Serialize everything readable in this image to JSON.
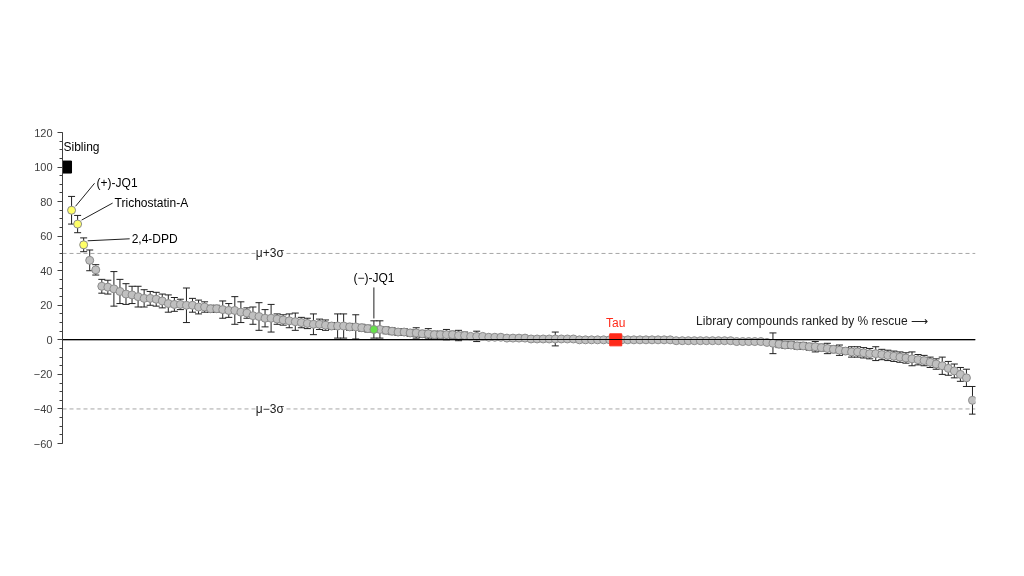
{
  "chart_data": {
    "type": "scatter",
    "marker": "circle",
    "legend": false,
    "grid": false,
    "tick_labels": "y",
    "ylim": [
      -60,
      120
    ],
    "yticks": [
      -60,
      -40,
      -20,
      0,
      20,
      40,
      60,
      80,
      100,
      120
    ],
    "categories": [
      null,
      null,
      null,
      null,
      null,
      null,
      null,
      null,
      null,
      null,
      null,
      null,
      null,
      null,
      null,
      null,
      null,
      null,
      null,
      null,
      null,
      null,
      null,
      null,
      null,
      null,
      null,
      null,
      null,
      null,
      null,
      null,
      null,
      null,
      null,
      null,
      null,
      null,
      null,
      null,
      null,
      null,
      null,
      null,
      null,
      null,
      null,
      null,
      null,
      null,
      null,
      null,
      null,
      null,
      null,
      null,
      null,
      null,
      null,
      null,
      null,
      null,
      null,
      null,
      null,
      null,
      null,
      null,
      null,
      null,
      null,
      null,
      null,
      null,
      null,
      null,
      null,
      null,
      null,
      null,
      null,
      null,
      null,
      null,
      null,
      null,
      null,
      null,
      null,
      null,
      null,
      null,
      null,
      null,
      null,
      null,
      null,
      null,
      null,
      null,
      null,
      null,
      null,
      null,
      null,
      null,
      null,
      null,
      null,
      null,
      null,
      null,
      null,
      null,
      null,
      null,
      null,
      null,
      null,
      null,
      null,
      null,
      null,
      null,
      null,
      null,
      null,
      null,
      null,
      null,
      null,
      null,
      null,
      null,
      null,
      null,
      null,
      null,
      null,
      null,
      null,
      null,
      null,
      null,
      null,
      null,
      null,
      null,
      null,
      null,
      null
    ],
    "series": [
      {
        "color": "#c0c0c0",
        "values": [
          null,
          null,
          null,
          null,
          46,
          40.5,
          31,
          30.5,
          29.5,
          28,
          26.5,
          26,
          25,
          24,
          24,
          23.5,
          22.5,
          21,
          20.5,
          20.5,
          20,
          20,
          19,
          19,
          18,
          18,
          17.5,
          17,
          17,
          16,
          15.5,
          14,
          13.5,
          12.5,
          12.5,
          12,
          11.5,
          11,
          10.5,
          10,
          9.5,
          9,
          9,
          8.5,
          8,
          8,
          8,
          7.5,
          7.5,
          7,
          6.5,
          null,
          6,
          5.5,
          5,
          4.5,
          4.5,
          4,
          4,
          3.5,
          3.5,
          3,
          3,
          3,
          3,
          2.5,
          2.5,
          2,
          2,
          2,
          1.5,
          1.5,
          1.5,
          1,
          1,
          1,
          1,
          0.5,
          0.5,
          0.5,
          0.5,
          0.5,
          0.5,
          0.5,
          0.5,
          0,
          0,
          0,
          0,
          0,
          0,
          null,
          0,
          0,
          0,
          0,
          0,
          0,
          0,
          0,
          0,
          -0.5,
          -0.5,
          -0.5,
          -0.5,
          -0.5,
          -0.5,
          -0.5,
          -0.5,
          -0.5,
          -0.5,
          -1,
          -1,
          -1,
          -1,
          -1,
          -1.5,
          -2,
          -2.5,
          -3,
          -3,
          -3.5,
          -3.5,
          -4,
          -4,
          -4.5,
          -5,
          -5.5,
          -6,
          -6.5,
          -7,
          -7,
          -7.5,
          -8,
          -8,
          -8.5,
          -9,
          -9.5,
          -10,
          -10.5,
          -11,
          -11.5,
          -12,
          -13,
          -14,
          -15,
          -16.5,
          -18,
          -20,
          -22,
          -35
        ],
        "errors": [
          null,
          null,
          null,
          null,
          6,
          3,
          4,
          4,
          10,
          7,
          6,
          5,
          6,
          5,
          4,
          4,
          4,
          5,
          4,
          3,
          10,
          4,
          4,
          3,
          2,
          2,
          5,
          4,
          8,
          6,
          3,
          5,
          8,
          5,
          8,
          3,
          3,
          4,
          5,
          3,
          3,
          6,
          3,
          3,
          2,
          7,
          7,
          2,
          7,
          2,
          2,
          null,
          5,
          2,
          2,
          2,
          2,
          2,
          3,
          2,
          3,
          2,
          2,
          3,
          2,
          3,
          2,
          1,
          3,
          1,
          1,
          1,
          1,
          1,
          1,
          1,
          1,
          1,
          1,
          1,
          1,
          4,
          1,
          1,
          1,
          1,
          1,
          1,
          1,
          1,
          1,
          null,
          1,
          1,
          1,
          1,
          1,
          1,
          1,
          1,
          1,
          1,
          1,
          1,
          1,
          1,
          1,
          1,
          1,
          1,
          1,
          1,
          1,
          1,
          1,
          1,
          1,
          6,
          2,
          2,
          2,
          2,
          2,
          2,
          3,
          2,
          3,
          2,
          3,
          2,
          3,
          3,
          3,
          3,
          4,
          3,
          3,
          3,
          3,
          3,
          4,
          3,
          3,
          3,
          3,
          5,
          4,
          4,
          4,
          5,
          8
        ]
      },
      {
        "name": "Sibling",
        "color": "#000000",
        "marker": "square",
        "values": [
          100,
          null,
          null,
          null,
          null,
          null,
          null,
          null,
          null,
          null,
          null,
          null,
          null,
          null,
          null,
          null,
          null,
          null,
          null,
          null,
          null,
          null,
          null,
          null,
          null,
          null,
          null,
          null,
          null,
          null,
          null,
          null,
          null,
          null,
          null,
          null,
          null,
          null,
          null,
          null,
          null,
          null,
          null,
          null,
          null,
          null,
          null,
          null,
          null,
          null,
          null,
          null,
          null,
          null,
          null,
          null,
          null,
          null,
          null,
          null,
          null,
          null,
          null,
          null,
          null,
          null,
          null,
          null,
          null,
          null,
          null,
          null,
          null,
          null,
          null,
          null,
          null,
          null,
          null,
          null,
          null,
          null,
          null,
          null,
          null,
          null,
          null,
          null,
          null,
          null,
          null,
          null,
          null,
          null,
          null,
          null,
          null,
          null,
          null,
          null,
          null,
          null,
          null,
          null,
          null,
          null,
          null,
          null,
          null,
          null,
          null,
          null,
          null,
          null,
          null,
          null,
          null,
          null,
          null,
          null,
          null,
          null,
          null,
          null,
          null,
          null,
          null,
          null,
          null,
          null,
          null,
          null,
          null,
          null,
          null,
          null,
          null,
          null,
          null,
          null,
          null,
          null,
          null,
          null,
          null,
          null,
          null,
          null,
          null,
          null,
          null
        ]
      },
      {
        "name": "(+)-JQ1",
        "color": "#ffff66",
        "values": [
          null,
          75,
          null,
          null,
          null,
          null,
          null,
          null,
          null,
          null,
          null,
          null,
          null,
          null,
          null,
          null,
          null,
          null,
          null,
          null,
          null,
          null,
          null,
          null,
          null,
          null,
          null,
          null,
          null,
          null,
          null,
          null,
          null,
          null,
          null,
          null,
          null,
          null,
          null,
          null,
          null,
          null,
          null,
          null,
          null,
          null,
          null,
          null,
          null,
          null,
          null,
          null,
          null,
          null,
          null,
          null,
          null,
          null,
          null,
          null,
          null,
          null,
          null,
          null,
          null,
          null,
          null,
          null,
          null,
          null,
          null,
          null,
          null,
          null,
          null,
          null,
          null,
          null,
          null,
          null,
          null,
          null,
          null,
          null,
          null,
          null,
          null,
          null,
          null,
          null,
          null,
          null,
          null,
          null,
          null,
          null,
          null,
          null,
          null,
          null,
          null,
          null,
          null,
          null,
          null,
          null,
          null,
          null,
          null,
          null,
          null,
          null,
          null,
          null,
          null,
          null,
          null,
          null,
          null,
          null,
          null,
          null,
          null,
          null,
          null,
          null,
          null,
          null,
          null,
          null,
          null,
          null,
          null,
          null,
          null,
          null,
          null,
          null,
          null,
          null,
          null,
          null,
          null,
          null,
          null,
          null,
          null,
          null,
          null,
          null,
          null
        ],
        "errors": [
          null,
          8,
          null,
          null,
          null,
          null,
          null,
          null,
          null,
          null,
          null,
          null,
          null,
          null,
          null,
          null,
          null,
          null,
          null,
          null,
          null,
          null,
          null,
          null,
          null,
          null,
          null,
          null,
          null,
          null,
          null,
          null,
          null,
          null,
          null,
          null,
          null,
          null,
          null,
          null,
          null,
          null,
          null,
          null,
          null,
          null,
          null,
          null,
          null,
          null,
          null,
          null,
          null,
          null,
          null,
          null,
          null,
          null,
          null,
          null,
          null,
          null,
          null,
          null,
          null,
          null,
          null,
          null,
          null,
          null,
          null,
          null,
          null,
          null,
          null,
          null,
          null,
          null,
          null,
          null,
          null,
          null,
          null,
          null,
          null,
          null,
          null,
          null,
          null,
          null,
          null,
          null,
          null,
          null,
          null,
          null,
          null,
          null,
          null,
          null,
          null,
          null,
          null,
          null,
          null,
          null,
          null,
          null,
          null,
          null,
          null,
          null,
          null,
          null,
          null,
          null,
          null,
          null,
          null,
          null,
          null,
          null,
          null,
          null,
          null,
          null,
          null,
          null,
          null,
          null,
          null,
          null,
          null,
          null,
          null,
          null,
          null,
          null,
          null,
          null,
          null,
          null,
          null,
          null,
          null,
          null,
          null,
          null,
          null,
          null,
          null
        ]
      },
      {
        "name": "Trichostatin-A",
        "color": "#ffff66",
        "values": [
          null,
          null,
          67,
          null,
          null,
          null,
          null,
          null,
          null,
          null,
          null,
          null,
          null,
          null,
          null,
          null,
          null,
          null,
          null,
          null,
          null,
          null,
          null,
          null,
          null,
          null,
          null,
          null,
          null,
          null,
          null,
          null,
          null,
          null,
          null,
          null,
          null,
          null,
          null,
          null,
          null,
          null,
          null,
          null,
          null,
          null,
          null,
          null,
          null,
          null,
          null,
          null,
          null,
          null,
          null,
          null,
          null,
          null,
          null,
          null,
          null,
          null,
          null,
          null,
          null,
          null,
          null,
          null,
          null,
          null,
          null,
          null,
          null,
          null,
          null,
          null,
          null,
          null,
          null,
          null,
          null,
          null,
          null,
          null,
          null,
          null,
          null,
          null,
          null,
          null,
          null,
          null,
          null,
          null,
          null,
          null,
          null,
          null,
          null,
          null,
          null,
          null,
          null,
          null,
          null,
          null,
          null,
          null,
          null,
          null,
          null,
          null,
          null,
          null,
          null,
          null,
          null,
          null,
          null,
          null,
          null,
          null,
          null,
          null,
          null,
          null,
          null,
          null,
          null,
          null,
          null,
          null,
          null,
          null,
          null,
          null,
          null,
          null,
          null,
          null,
          null,
          null,
          null,
          null,
          null,
          null,
          null,
          null,
          null,
          null,
          null
        ],
        "errors": [
          null,
          null,
          5,
          null,
          null,
          null,
          null,
          null,
          null,
          null,
          null,
          null,
          null,
          null,
          null,
          null,
          null,
          null,
          null,
          null,
          null,
          null,
          null,
          null,
          null,
          null,
          null,
          null,
          null,
          null,
          null,
          null,
          null,
          null,
          null,
          null,
          null,
          null,
          null,
          null,
          null,
          null,
          null,
          null,
          null,
          null,
          null,
          null,
          null,
          null,
          null,
          null,
          null,
          null,
          null,
          null,
          null,
          null,
          null,
          null,
          null,
          null,
          null,
          null,
          null,
          null,
          null,
          null,
          null,
          null,
          null,
          null,
          null,
          null,
          null,
          null,
          null,
          null,
          null,
          null,
          null,
          null,
          null,
          null,
          null,
          null,
          null,
          null,
          null,
          null,
          null,
          null,
          null,
          null,
          null,
          null,
          null,
          null,
          null,
          null,
          null,
          null,
          null,
          null,
          null,
          null,
          null,
          null,
          null,
          null,
          null,
          null,
          null,
          null,
          null,
          null,
          null,
          null,
          null,
          null,
          null,
          null,
          null,
          null,
          null,
          null,
          null,
          null,
          null,
          null,
          null,
          null,
          null,
          null,
          null,
          null,
          null,
          null,
          null,
          null,
          null,
          null,
          null,
          null,
          null,
          null,
          null,
          null,
          null,
          null,
          null
        ]
      },
      {
        "name": "2,4-DPD",
        "color": "#ffff66",
        "values": [
          null,
          null,
          null,
          55,
          null,
          null,
          null,
          null,
          null,
          null,
          null,
          null,
          null,
          null,
          null,
          null,
          null,
          null,
          null,
          null,
          null,
          null,
          null,
          null,
          null,
          null,
          null,
          null,
          null,
          null,
          null,
          null,
          null,
          null,
          null,
          null,
          null,
          null,
          null,
          null,
          null,
          null,
          null,
          null,
          null,
          null,
          null,
          null,
          null,
          null,
          null,
          null,
          null,
          null,
          null,
          null,
          null,
          null,
          null,
          null,
          null,
          null,
          null,
          null,
          null,
          null,
          null,
          null,
          null,
          null,
          null,
          null,
          null,
          null,
          null,
          null,
          null,
          null,
          null,
          null,
          null,
          null,
          null,
          null,
          null,
          null,
          null,
          null,
          null,
          null,
          null,
          null,
          null,
          null,
          null,
          null,
          null,
          null,
          null,
          null,
          null,
          null,
          null,
          null,
          null,
          null,
          null,
          null,
          null,
          null,
          null,
          null,
          null,
          null,
          null,
          null,
          null,
          null,
          null,
          null,
          null,
          null,
          null,
          null,
          null,
          null,
          null,
          null,
          null,
          null,
          null,
          null,
          null,
          null,
          null,
          null,
          null,
          null,
          null,
          null,
          null,
          null,
          null,
          null,
          null,
          null,
          null,
          null,
          null,
          null,
          null
        ],
        "errors": [
          null,
          null,
          null,
          4,
          null,
          null,
          null,
          null,
          null,
          null,
          null,
          null,
          null,
          null,
          null,
          null,
          null,
          null,
          null,
          null,
          null,
          null,
          null,
          null,
          null,
          null,
          null,
          null,
          null,
          null,
          null,
          null,
          null,
          null,
          null,
          null,
          null,
          null,
          null,
          null,
          null,
          null,
          null,
          null,
          null,
          null,
          null,
          null,
          null,
          null,
          null,
          null,
          null,
          null,
          null,
          null,
          null,
          null,
          null,
          null,
          null,
          null,
          null,
          null,
          null,
          null,
          null,
          null,
          null,
          null,
          null,
          null,
          null,
          null,
          null,
          null,
          null,
          null,
          null,
          null,
          null,
          null,
          null,
          null,
          null,
          null,
          null,
          null,
          null,
          null,
          null,
          null,
          null,
          null,
          null,
          null,
          null,
          null,
          null,
          null,
          null,
          null,
          null,
          null,
          null,
          null,
          null,
          null,
          null,
          null,
          null,
          null,
          null,
          null,
          null,
          null,
          null,
          null,
          null,
          null,
          null,
          null,
          null,
          null,
          null,
          null,
          null,
          null,
          null,
          null,
          null,
          null,
          null,
          null,
          null,
          null,
          null,
          null,
          null,
          null,
          null,
          null,
          null,
          null,
          null,
          null,
          null,
          null,
          null,
          null,
          null
        ]
      },
      {
        "name": "(−)-JQ1",
        "color": "#66e04a",
        "values": [
          null,
          null,
          null,
          null,
          null,
          null,
          null,
          null,
          null,
          null,
          null,
          null,
          null,
          null,
          null,
          null,
          null,
          null,
          null,
          null,
          null,
          null,
          null,
          null,
          null,
          null,
          null,
          null,
          null,
          null,
          null,
          null,
          null,
          null,
          null,
          null,
          null,
          null,
          null,
          null,
          null,
          null,
          null,
          null,
          null,
          null,
          null,
          null,
          null,
          null,
          null,
          6,
          null,
          null,
          null,
          null,
          null,
          null,
          null,
          null,
          null,
          null,
          null,
          null,
          null,
          null,
          null,
          null,
          null,
          null,
          null,
          null,
          null,
          null,
          null,
          null,
          null,
          null,
          null,
          null,
          null,
          null,
          null,
          null,
          null,
          null,
          null,
          null,
          null,
          null,
          null,
          null,
          null,
          null,
          null,
          null,
          null,
          null,
          null,
          null,
          null,
          null,
          null,
          null,
          null,
          null,
          null,
          null,
          null,
          null,
          null,
          null,
          null,
          null,
          null,
          null,
          null,
          null,
          null,
          null,
          null,
          null,
          null,
          null,
          null,
          null,
          null,
          null,
          null,
          null,
          null,
          null,
          null,
          null,
          null,
          null,
          null,
          null,
          null,
          null,
          null,
          null,
          null,
          null,
          null,
          null,
          null,
          null,
          null,
          null,
          null
        ],
        "errors": [
          null,
          null,
          null,
          null,
          null,
          null,
          null,
          null,
          null,
          null,
          null,
          null,
          null,
          null,
          null,
          null,
          null,
          null,
          null,
          null,
          null,
          null,
          null,
          null,
          null,
          null,
          null,
          null,
          null,
          null,
          null,
          null,
          null,
          null,
          null,
          null,
          null,
          null,
          null,
          null,
          null,
          null,
          null,
          null,
          null,
          null,
          null,
          null,
          null,
          null,
          null,
          5,
          null,
          null,
          null,
          null,
          null,
          null,
          null,
          null,
          null,
          null,
          null,
          null,
          null,
          null,
          null,
          null,
          null,
          null,
          null,
          null,
          null,
          null,
          null,
          null,
          null,
          null,
          null,
          null,
          null,
          null,
          null,
          null,
          null,
          null,
          null,
          null,
          null,
          null,
          null,
          null,
          null,
          null,
          null,
          null,
          null,
          null,
          null,
          null,
          null,
          null,
          null,
          null,
          null,
          null,
          null,
          null,
          null,
          null,
          null,
          null,
          null,
          null,
          null,
          null,
          null,
          null,
          null,
          null,
          null,
          null,
          null,
          null,
          null,
          null,
          null,
          null,
          null,
          null,
          null,
          null,
          null,
          null,
          null,
          null,
          null,
          null,
          null,
          null,
          null,
          null,
          null,
          null,
          null,
          null,
          null,
          null,
          null,
          null,
          null
        ]
      },
      {
        "name": "Tau",
        "color": "#ff2a1a",
        "marker": "square",
        "values": [
          null,
          null,
          null,
          null,
          null,
          null,
          null,
          null,
          null,
          null,
          null,
          null,
          null,
          null,
          null,
          null,
          null,
          null,
          null,
          null,
          null,
          null,
          null,
          null,
          null,
          null,
          null,
          null,
          null,
          null,
          null,
          null,
          null,
          null,
          null,
          null,
          null,
          null,
          null,
          null,
          null,
          null,
          null,
          null,
          null,
          null,
          null,
          null,
          null,
          null,
          null,
          null,
          null,
          null,
          null,
          null,
          null,
          null,
          null,
          null,
          null,
          null,
          null,
          null,
          null,
          null,
          null,
          null,
          null,
          null,
          null,
          null,
          null,
          null,
          null,
          null,
          null,
          null,
          null,
          null,
          null,
          null,
          null,
          null,
          null,
          null,
          null,
          null,
          null,
          null,
          null,
          0,
          null,
          null,
          null,
          null,
          null,
          null,
          null,
          null,
          null,
          null,
          null,
          null,
          null,
          null,
          null,
          null,
          null,
          null,
          null,
          null,
          null,
          null,
          null,
          null,
          null,
          null,
          null,
          null,
          null,
          null,
          null,
          null,
          null,
          null,
          null,
          null,
          null,
          null,
          null,
          null,
          null,
          null,
          null,
          null,
          null,
          null,
          null,
          null,
          null,
          null,
          null,
          null,
          null,
          null,
          null,
          null,
          null,
          null,
          null
        ]
      }
    ],
    "ref_lines": [
      {
        "axis": "y",
        "value": 50,
        "label": "μ+3σ",
        "line_style": "dashed",
        "color": "#a6a6a6"
      },
      {
        "axis": "y",
        "value": -40,
        "label": "μ−3σ",
        "line_style": "dashed",
        "color": "#a6a6a6"
      },
      {
        "axis": "y",
        "value": 0,
        "line_style": "solid",
        "color": "#000000"
      }
    ],
    "annotations": [
      "Library compounds ranked by % rescue  ⟶"
    ]
  }
}
